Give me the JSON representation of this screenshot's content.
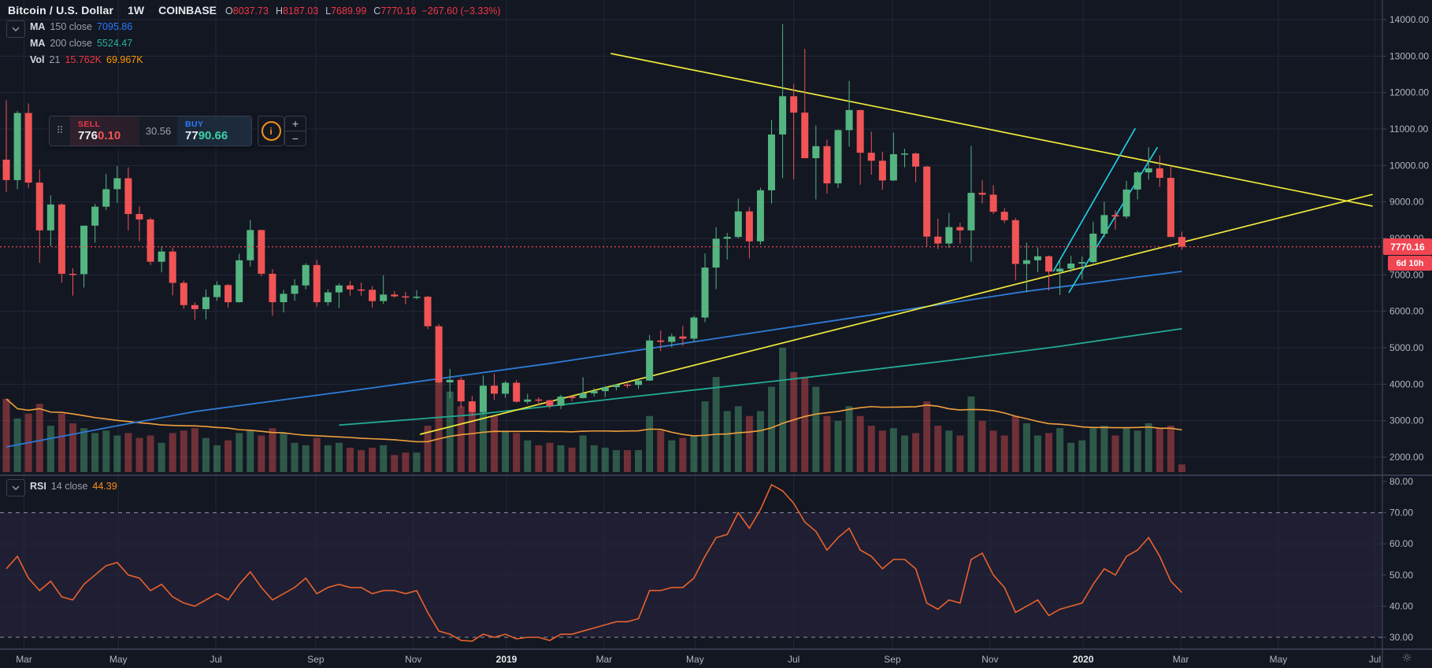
{
  "colors": {
    "background": "#131722",
    "grid": "#222838",
    "separator": "#40455a",
    "up": "#54b581",
    "down": "#f05455",
    "vol_up": "rgba(84,181,129,0.42)",
    "vol_down": "rgba(240,84,85,0.42)",
    "ma150": "#2e7bd6",
    "ma200": "#22ab94",
    "vol_ma": "#f0a03c",
    "trend_yellow": "#f0e93a",
    "trend_cyan": "#1ecbe1",
    "rsi_line": "#e8622c",
    "rsi_band": "rgba(136,96,208,0.10)",
    "rsi_dash": "#a2a6b4",
    "price_line": "#f04552",
    "axis_text": "#b2b5be",
    "axis_text_major": "#e8eaed"
  },
  "header": {
    "symbol": "Bitcoin / U.S. Dollar",
    "sep": "·",
    "interval": "1W",
    "exchange": "COINBASE",
    "o_label": "O",
    "o_value": "8037.73",
    "h_label": "H",
    "h_value": "8187.03",
    "l_label": "L",
    "l_value": "7689.99",
    "c_label": "C",
    "c_value": "7770.16",
    "change": "−267.60 (−3.33%)"
  },
  "legend": {
    "ma150": {
      "name": "MA",
      "params": "150 close",
      "value": "7095.86"
    },
    "ma200": {
      "name": "MA",
      "params": "200 close",
      "value": "5524.47"
    },
    "vol": {
      "name": "Vol",
      "params": "21",
      "value": "15.762K",
      "ma_value": "69.967K"
    },
    "rsi": {
      "name": "RSI",
      "params": "14 close",
      "value": "44.39"
    }
  },
  "order_widget": {
    "sell_label": "SELL",
    "sell_main": "776",
    "sell_sub": "0.10",
    "spread": "30.56",
    "buy_label": "BUY",
    "buy_main": "77",
    "buy_sub": "90.66",
    "info_glyph": "i",
    "plus": "+",
    "minus": "−",
    "grip_glyph": "⠿"
  },
  "price_axis": {
    "ticks": [
      14000,
      13000,
      12000,
      11000,
      10000,
      9000,
      8000,
      7000,
      6000,
      5000,
      4000,
      3000,
      2000
    ],
    "current_price": "7770.16",
    "countdown": "6d 10h"
  },
  "rsi_axis": {
    "ticks": [
      80,
      70,
      60,
      50,
      40,
      30
    ],
    "solid_grid": [
      60,
      50,
      40
    ],
    "dashed_levels": [
      70,
      30
    ]
  },
  "time_axis": {
    "labels": [
      {
        "text": "Mar",
        "i": 1.6,
        "major": false
      },
      {
        "text": "May",
        "i": 10.1,
        "major": false
      },
      {
        "text": "Jul",
        "i": 18.9,
        "major": false
      },
      {
        "text": "Sep",
        "i": 27.9,
        "major": false
      },
      {
        "text": "Nov",
        "i": 36.7,
        "major": false
      },
      {
        "text": "2019",
        "i": 45.1,
        "major": true
      },
      {
        "text": "Mar",
        "i": 53.9,
        "major": false
      },
      {
        "text": "May",
        "i": 62.1,
        "major": false
      },
      {
        "text": "Jul",
        "i": 71.0,
        "major": false
      },
      {
        "text": "Sep",
        "i": 79.9,
        "major": false
      },
      {
        "text": "Nov",
        "i": 88.7,
        "major": false
      },
      {
        "text": "2020",
        "i": 97.1,
        "major": true
      },
      {
        "text": "Mar",
        "i": 105.9,
        "major": false
      },
      {
        "text": "May",
        "i": 114.7,
        "major": false
      },
      {
        "text": "Jul",
        "i": 123.4,
        "major": false
      }
    ],
    "settings_icon_glyph": "☼"
  },
  "chart_data": {
    "type": "candlestick",
    "title": "Bitcoin / U.S. Dollar, 1W, COINBASE",
    "price_range": [
      2000,
      14000
    ],
    "rsi_range": [
      30,
      80
    ],
    "current_price": 7770.16,
    "candles_ohlcv": [
      [
        10160,
        11790,
        9280,
        9600,
        150
      ],
      [
        9600,
        11500,
        9350,
        11440,
        110
      ],
      [
        11440,
        11700,
        9380,
        9530,
        120
      ],
      [
        9530,
        9890,
        7330,
        8220,
        140
      ],
      [
        8220,
        9180,
        7790,
        8930,
        95
      ],
      [
        8930,
        8960,
        6790,
        7030,
        120
      ],
      [
        7030,
        7180,
        6430,
        7020,
        100
      ],
      [
        7020,
        8230,
        6650,
        8350,
        90
      ],
      [
        8350,
        8950,
        7880,
        8870,
        80
      ],
      [
        8870,
        9770,
        8780,
        9350,
        85
      ],
      [
        9350,
        9990,
        8970,
        9650,
        75
      ],
      [
        9650,
        9950,
        8220,
        8670,
        80
      ],
      [
        8670,
        8880,
        7930,
        8520,
        70
      ],
      [
        8520,
        8570,
        7270,
        7360,
        75
      ],
      [
        7360,
        7780,
        7070,
        7640,
        60
      ],
      [
        7640,
        7750,
        6440,
        6780,
        80
      ],
      [
        6780,
        6840,
        6070,
        6170,
        85
      ],
      [
        6170,
        6250,
        5770,
        6060,
        90
      ],
      [
        6060,
        6600,
        5780,
        6390,
        70
      ],
      [
        6390,
        6820,
        6290,
        6720,
        55
      ],
      [
        6720,
        6750,
        6100,
        6250,
        65
      ],
      [
        6250,
        7580,
        6240,
        7400,
        80
      ],
      [
        7400,
        8500,
        7230,
        8230,
        85
      ],
      [
        8230,
        8240,
        6960,
        7030,
        75
      ],
      [
        7030,
        7160,
        5880,
        6250,
        90
      ],
      [
        6250,
        6590,
        5970,
        6480,
        80
      ],
      [
        6480,
        6880,
        6290,
        6710,
        60
      ],
      [
        6710,
        7320,
        6600,
        7270,
        55
      ],
      [
        7270,
        7410,
        6130,
        6250,
        70
      ],
      [
        6250,
        6600,
        6150,
        6520,
        55
      ],
      [
        6520,
        6770,
        6090,
        6710,
        60
      ],
      [
        6710,
        6830,
        6430,
        6600,
        50
      ],
      [
        6600,
        6790,
        6430,
        6590,
        45
      ],
      [
        6590,
        6690,
        6100,
        6280,
        50
      ],
      [
        6280,
        6990,
        6200,
        6460,
        55
      ],
      [
        6460,
        6560,
        6370,
        6410,
        35
      ],
      [
        6410,
        6530,
        6190,
        6390,
        40
      ],
      [
        6390,
        6580,
        6330,
        6400,
        40
      ],
      [
        6400,
        6420,
        5510,
        5590,
        95
      ],
      [
        5590,
        5650,
        4030,
        4050,
        190
      ],
      [
        4050,
        4420,
        3620,
        4120,
        165
      ],
      [
        4120,
        4190,
        3350,
        3530,
        135
      ],
      [
        3530,
        3680,
        3130,
        3240,
        125
      ],
      [
        3240,
        4240,
        3180,
        3960,
        145
      ],
      [
        3960,
        4290,
        3570,
        3740,
        115
      ],
      [
        3740,
        4090,
        3630,
        4040,
        85
      ],
      [
        4040,
        4110,
        3500,
        3520,
        80
      ],
      [
        3520,
        3740,
        3460,
        3580,
        65
      ],
      [
        3580,
        3640,
        3420,
        3560,
        55
      ],
      [
        3560,
        3580,
        3330,
        3410,
        60
      ],
      [
        3410,
        3710,
        3320,
        3660,
        55
      ],
      [
        3660,
        3680,
        3530,
        3620,
        50
      ],
      [
        3620,
        4190,
        3610,
        3750,
        75
      ],
      [
        3750,
        3890,
        3660,
        3810,
        55
      ],
      [
        3810,
        3950,
        3650,
        3920,
        50
      ],
      [
        3920,
        4010,
        3830,
        3990,
        45
      ],
      [
        3990,
        4060,
        3900,
        3980,
        45
      ],
      [
        3980,
        4110,
        3870,
        4100,
        45
      ],
      [
        4100,
        5350,
        4090,
        5200,
        115
      ],
      [
        5200,
        5470,
        4910,
        5160,
        85
      ],
      [
        5160,
        5390,
        5010,
        5310,
        65
      ],
      [
        5310,
        5600,
        5050,
        5250,
        70
      ],
      [
        5250,
        5880,
        5160,
        5830,
        75
      ],
      [
        5830,
        7590,
        5700,
        7200,
        145
      ],
      [
        7200,
        8310,
        6610,
        7990,
        195
      ],
      [
        7990,
        8150,
        7420,
        8040,
        125
      ],
      [
        8040,
        9090,
        8000,
        8740,
        135
      ],
      [
        8740,
        8860,
        7450,
        7920,
        115
      ],
      [
        7920,
        9390,
        7830,
        9320,
        125
      ],
      [
        9320,
        11250,
        8960,
        10850,
        175
      ],
      [
        10850,
        13880,
        9650,
        11900,
        255
      ],
      [
        11900,
        12240,
        9620,
        11450,
        205
      ],
      [
        11450,
        13200,
        11040,
        10200,
        195
      ],
      [
        10200,
        11100,
        9070,
        10530,
        175
      ],
      [
        10530,
        10710,
        9230,
        9510,
        115
      ],
      [
        9510,
        10990,
        9380,
        10970,
        105
      ],
      [
        10970,
        12320,
        10520,
        11520,
        135
      ],
      [
        11520,
        11530,
        9470,
        10350,
        115
      ],
      [
        10350,
        10930,
        9750,
        10130,
        95
      ],
      [
        10130,
        10380,
        9330,
        9590,
        85
      ],
      [
        9590,
        10900,
        9570,
        10310,
        90
      ],
      [
        10310,
        10460,
        9950,
        10330,
        75
      ],
      [
        10330,
        10350,
        9540,
        9970,
        80
      ],
      [
        9970,
        9990,
        7770,
        8050,
        145
      ],
      [
        8050,
        8540,
        7710,
        7860,
        95
      ],
      [
        7860,
        8700,
        7740,
        8310,
        85
      ],
      [
        8310,
        8430,
        7850,
        8220,
        75
      ],
      [
        8220,
        10540,
        7360,
        9250,
        155
      ],
      [
        9250,
        9600,
        8960,
        9200,
        105
      ],
      [
        9200,
        9460,
        8670,
        8730,
        85
      ],
      [
        8730,
        8830,
        8420,
        8500,
        75
      ],
      [
        8500,
        8560,
        6850,
        7300,
        115
      ],
      [
        7300,
        7880,
        6520,
        7400,
        100
      ],
      [
        7400,
        7750,
        7070,
        7510,
        75
      ],
      [
        7510,
        7530,
        6570,
        7090,
        80
      ],
      [
        7090,
        7440,
        6450,
        7170,
        90
      ],
      [
        7170,
        7520,
        7080,
        7310,
        60
      ],
      [
        7310,
        7500,
        6870,
        7350,
        65
      ],
      [
        7350,
        8460,
        7320,
        8130,
        90
      ],
      [
        8130,
        9010,
        8030,
        8640,
        95
      ],
      [
        8640,
        8770,
        8240,
        8600,
        75
      ],
      [
        8600,
        9580,
        8540,
        9340,
        90
      ],
      [
        9340,
        9860,
        9070,
        9810,
        85
      ],
      [
        9810,
        10500,
        9610,
        9920,
        100
      ],
      [
        9920,
        10280,
        9410,
        9660,
        90
      ],
      [
        9660,
        9990,
        8410,
        8040,
        95
      ],
      [
        8037.73,
        8187.03,
        7689.99,
        7770.16,
        15.762
      ]
    ],
    "rsi_values": [
      52,
      56,
      49,
      45,
      48,
      43,
      42,
      47,
      50,
      53,
      54,
      50,
      49,
      45,
      47,
      43,
      41,
      40,
      42,
      44,
      42,
      47,
      51,
      46,
      42,
      44,
      46,
      49,
      44,
      46,
      47,
      46,
      46,
      44,
      45,
      45,
      44,
      45,
      38,
      32,
      31,
      29,
      28.8,
      31,
      30,
      31,
      29.5,
      30,
      30,
      29,
      31,
      31,
      32,
      33,
      34,
      35,
      35,
      36,
      45,
      45,
      46,
      46,
      49,
      56,
      62,
      63,
      70,
      65,
      71,
      79,
      77,
      73,
      67,
      64,
      58,
      62,
      65,
      58,
      56,
      52,
      55,
      55,
      52,
      41,
      39,
      42,
      41,
      55,
      57,
      50,
      46,
      38,
      40,
      42,
      37,
      39,
      40,
      41,
      47,
      52,
      50,
      56,
      58,
      62,
      56,
      48,
      44.39
    ],
    "volume_ma_period": 21,
    "ma150_points": [
      [
        0,
        2280
      ],
      [
        10,
        2860
      ],
      [
        17,
        3250
      ],
      [
        33,
        3900
      ],
      [
        49,
        4570
      ],
      [
        63,
        5210
      ],
      [
        78,
        5900
      ],
      [
        92,
        6550
      ],
      [
        106,
        7096
      ]
    ],
    "ma200_points": [
      [
        30,
        2880
      ],
      [
        42,
        3160
      ],
      [
        56,
        3640
      ],
      [
        70,
        4110
      ],
      [
        85,
        4650
      ],
      [
        95,
        5040
      ],
      [
        106,
        5524
      ]
    ],
    "drawings": [
      {
        "name": "triangle-upper-line",
        "color_key": "trend_yellow",
        "pts": [
          [
            54.5,
            13072
          ],
          [
            123.2,
            8885
          ]
        ]
      },
      {
        "name": "triangle-lower-line",
        "color_key": "trend_yellow",
        "pts": [
          [
            37.3,
            2626
          ],
          [
            123.2,
            9208
          ]
        ]
      },
      {
        "name": "channel-left-line",
        "color_key": "trend_cyan",
        "pts": [
          [
            94.4,
            7093
          ],
          [
            101.8,
            11021
          ]
        ]
      },
      {
        "name": "channel-right-line",
        "color_key": "trend_cyan",
        "pts": [
          [
            95.8,
            6510
          ],
          [
            103.8,
            10503
          ]
        ]
      }
    ]
  }
}
